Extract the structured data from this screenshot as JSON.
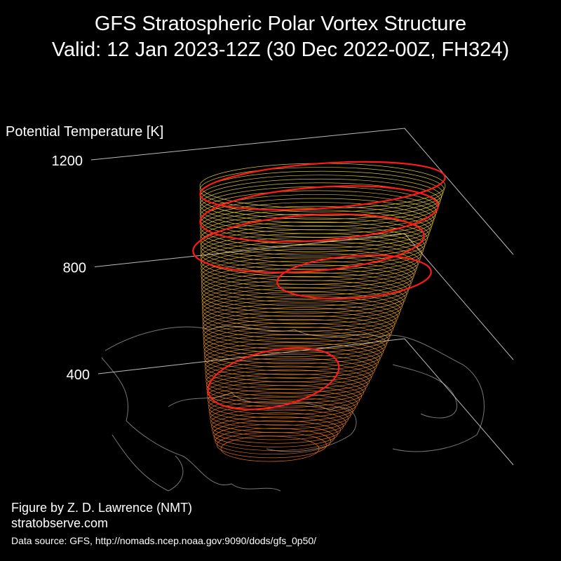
{
  "chart_data": {
    "type": "3d-vortex",
    "title": "GFS Stratospheric Polar Vortex Structure",
    "subtitle": "Valid: 12 Jan 2023-12Z  (30 Dec 2022-00Z, FH324)",
    "zlabel": "Potential Temperature [K]",
    "zlim": [
      400,
      1200
    ],
    "zticks": [
      400,
      800,
      1200
    ],
    "credit": "Figure by Z. D. Lawrence (NMT)",
    "website": "stratobserve.com",
    "source": "Data source: GFS, http://nomads.ncep.noaa.gov:9090/dods/gfs_0p50/"
  }
}
